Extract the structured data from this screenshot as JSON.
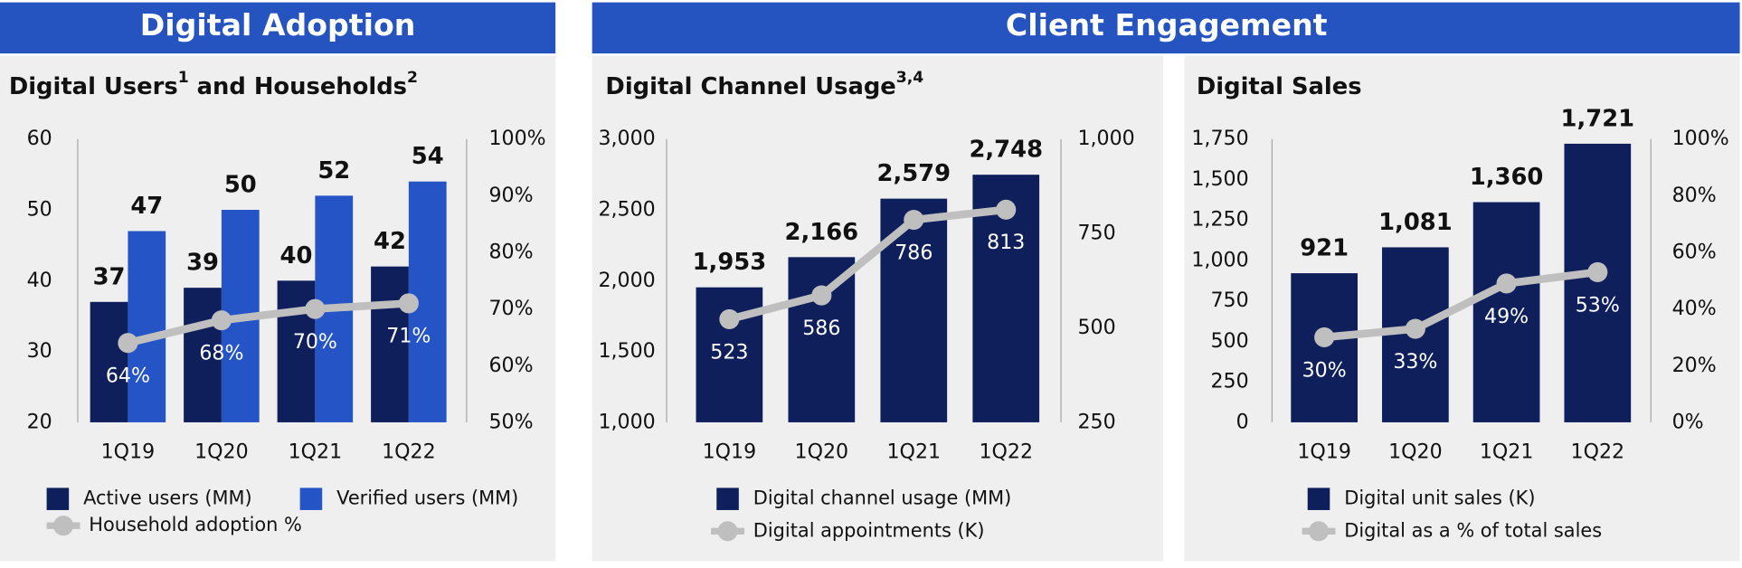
{
  "sections": [
    {
      "title": "Digital Adoption"
    },
    {
      "title": "Client Engagement"
    }
  ],
  "chart_data": [
    {
      "type": "bar",
      "title_parts": [
        {
          "text": "Digital Users"
        },
        {
          "sup": "1"
        },
        {
          "text": " and Households"
        },
        {
          "sup": "2"
        }
      ],
      "categories": [
        "1Q19",
        "1Q20",
        "1Q21",
        "1Q22"
      ],
      "ylim": [
        20,
        60
      ],
      "yticks": [
        20,
        30,
        40,
        50,
        60
      ],
      "y2lim": [
        50,
        100
      ],
      "y2ticks": [
        {
          "value": 50,
          "label": "50%"
        },
        {
          "value": 60,
          "label": "60%"
        },
        {
          "value": 70,
          "label": "70%"
        },
        {
          "value": 80,
          "label": "80%"
        },
        {
          "value": 90,
          "label": "90%"
        },
        {
          "value": 100,
          "label": "100%"
        }
      ],
      "series": [
        {
          "name": "Active users (MM)",
          "color": "#0f1f5c",
          "values": [
            37,
            39,
            40,
            42
          ]
        },
        {
          "name": "Verified users (MM)",
          "color": "#2554c7",
          "values": [
            47,
            50,
            52,
            54
          ]
        },
        {
          "name": "Household adoption %",
          "type": "line",
          "axis": "y2",
          "color": "#bfbfbf",
          "values": [
            64,
            68,
            70,
            71
          ],
          "value_labels": [
            "64%",
            "68%",
            "70%",
            "71%"
          ]
        }
      ]
    },
    {
      "type": "bar",
      "title_parts": [
        {
          "text": "Digital Channel Usage"
        },
        {
          "sup": "3,4"
        }
      ],
      "categories": [
        "1Q19",
        "1Q20",
        "1Q21",
        "1Q22"
      ],
      "ylim": [
        1000,
        3000
      ],
      "yticks": [
        {
          "value": 1000,
          "label": "1,000"
        },
        {
          "value": 1500,
          "label": "1,500"
        },
        {
          "value": 2000,
          "label": "2,000"
        },
        {
          "value": 2500,
          "label": "2,500"
        },
        {
          "value": 3000,
          "label": "3,000"
        }
      ],
      "y2lim": [
        250,
        1000
      ],
      "y2ticks": [
        250,
        500,
        750,
        {
          "value": 1000,
          "label": "1,000"
        }
      ],
      "series": [
        {
          "name": "Digital channel usage (MM)",
          "color": "#0f1f5c",
          "values": [
            1953,
            2166,
            2579,
            2748
          ],
          "value_labels": [
            "1,953",
            "2,166",
            "2,579",
            "2,748"
          ]
        },
        {
          "name": "Digital appointments (K)",
          "type": "line",
          "axis": "y2",
          "color": "#bfbfbf",
          "values": [
            523,
            586,
            786,
            813
          ]
        }
      ]
    },
    {
      "type": "bar",
      "title_parts": [
        {
          "text": "Digital Sales"
        }
      ],
      "categories": [
        "1Q19",
        "1Q20",
        "1Q21",
        "1Q22"
      ],
      "ylim": [
        0,
        1750
      ],
      "yticks": [
        0,
        250,
        500,
        750,
        {
          "value": 1000,
          "label": "1,000"
        },
        {
          "value": 1250,
          "label": "1,250"
        },
        {
          "value": 1500,
          "label": "1,500"
        },
        {
          "value": 1750,
          "label": "1,750"
        }
      ],
      "y2lim": [
        0,
        100
      ],
      "y2ticks": [
        {
          "value": 0,
          "label": "0%"
        },
        {
          "value": 20,
          "label": "20%"
        },
        {
          "value": 40,
          "label": "40%"
        },
        {
          "value": 60,
          "label": "60%"
        },
        {
          "value": 80,
          "label": "80%"
        },
        {
          "value": 100,
          "label": "100%"
        }
      ],
      "series": [
        {
          "name": "Digital unit sales (K)",
          "color": "#0f1f5c",
          "values": [
            921,
            1081,
            1360,
            1721
          ],
          "value_labels": [
            "921",
            "1,081",
            "1,360",
            "1,721"
          ]
        },
        {
          "name": "Digital as a % of total sales",
          "type": "line",
          "axis": "y2",
          "color": "#bfbfbf",
          "values": [
            30,
            33,
            49,
            53
          ],
          "value_labels": [
            "30%",
            "33%",
            "49%",
            "53%"
          ]
        }
      ]
    }
  ]
}
